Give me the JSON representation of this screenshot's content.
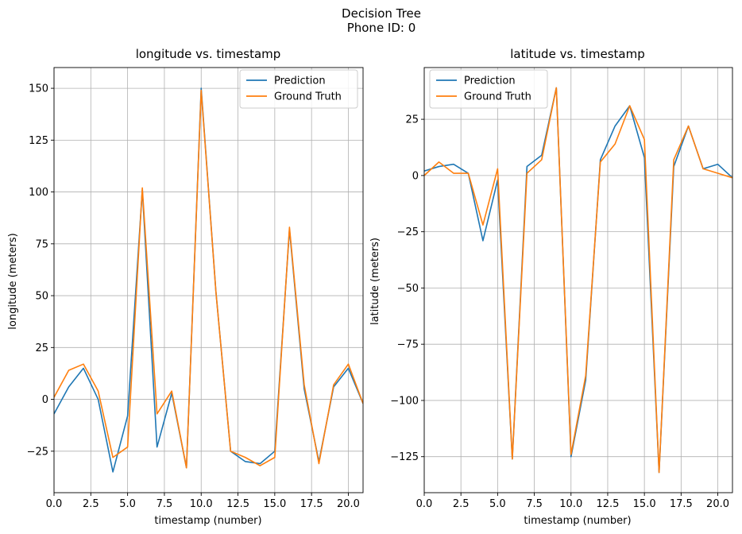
{
  "figure": {
    "suptitle_line1": "Decision Tree",
    "suptitle_line2": "Phone ID: 0"
  },
  "chart_data": [
    {
      "type": "line",
      "title": "longitude vs. timestamp",
      "xlabel": "timestamp (number)",
      "ylabel": "longitude (meters)",
      "xlim": [
        0,
        21
      ],
      "ylim": [
        -45,
        160
      ],
      "xticks": [
        0.0,
        2.5,
        5.0,
        7.5,
        10.0,
        12.5,
        15.0,
        17.5,
        20.0
      ],
      "xtick_labels": [
        "0.0",
        "2.5",
        "5.0",
        "7.5",
        "10.0",
        "12.5",
        "15.0",
        "17.5",
        "20.0"
      ],
      "yticks": [
        -25,
        0,
        25,
        50,
        75,
        100,
        125,
        150
      ],
      "ytick_labels": [
        "−25",
        "0",
        "25",
        "50",
        "75",
        "100",
        "125",
        "150"
      ],
      "grid": true,
      "legend": "top-right",
      "x": [
        0,
        1,
        2,
        3,
        4,
        5,
        6,
        7,
        8,
        9,
        10,
        11,
        12,
        13,
        14,
        15,
        16,
        17,
        18,
        19,
        20,
        21
      ],
      "series": [
        {
          "name": "Prediction",
          "color": "#1f77b4",
          "values": [
            -7,
            6,
            15,
            0,
            -35,
            -8,
            101,
            -23,
            3,
            -33,
            150,
            52,
            -25,
            -30,
            -31,
            -25,
            82,
            5,
            -30,
            6,
            15,
            -2
          ]
        },
        {
          "name": "Ground Truth",
          "color": "#ff7f0e",
          "values": [
            1,
            14,
            17,
            4,
            -28,
            -23,
            102,
            -7,
            4,
            -33,
            149,
            52,
            -25,
            -28,
            -32,
            -28,
            83,
            7,
            -31,
            7,
            17,
            -2
          ]
        }
      ]
    },
    {
      "type": "line",
      "title": "latitude vs. timestamp",
      "xlabel": "timestamp (number)",
      "ylabel": "latitude (meters)",
      "xlim": [
        0,
        21
      ],
      "ylim": [
        -141,
        48
      ],
      "xticks": [
        0.0,
        2.5,
        5.0,
        7.5,
        10.0,
        12.5,
        15.0,
        17.5,
        20.0
      ],
      "xtick_labels": [
        "0.0",
        "2.5",
        "5.0",
        "7.5",
        "10.0",
        "12.5",
        "15.0",
        "17.5",
        "20.0"
      ],
      "yticks": [
        -125,
        -100,
        -75,
        -50,
        -25,
        0,
        25
      ],
      "ytick_labels": [
        "−125",
        "−100",
        "−75",
        "−50",
        "−25",
        "0",
        "25"
      ],
      "grid": true,
      "legend": "top-left",
      "x": [
        0,
        1,
        2,
        3,
        4,
        5,
        6,
        7,
        8,
        9,
        10,
        11,
        12,
        13,
        14,
        15,
        16,
        17,
        18,
        19,
        20,
        21
      ],
      "series": [
        {
          "name": "Prediction",
          "color": "#1f77b4",
          "values": [
            2,
            4,
            5,
            1,
            -29,
            -2,
            -126,
            4,
            9,
            39,
            -125,
            -91,
            7,
            22,
            31,
            8,
            -132,
            4,
            22,
            3,
            5,
            -1
          ]
        },
        {
          "name": "Ground Truth",
          "color": "#ff7f0e",
          "values": [
            0,
            6,
            1,
            1,
            -22,
            3,
            -126,
            1,
            7,
            39,
            -124,
            -89,
            6,
            14,
            31,
            16,
            -132,
            7,
            22,
            3,
            1,
            -1
          ]
        }
      ]
    }
  ]
}
